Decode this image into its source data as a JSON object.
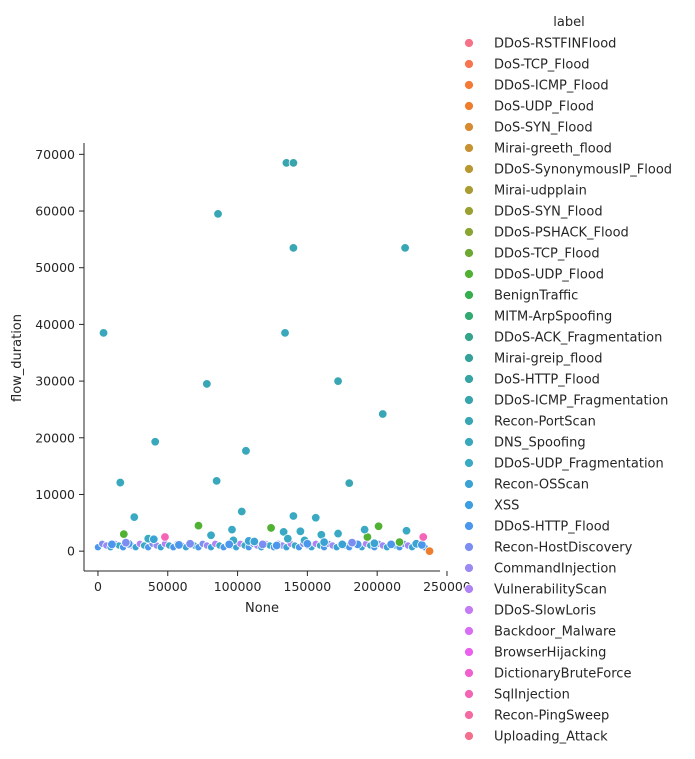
{
  "chart_data": {
    "type": "scatter",
    "xlabel": "None",
    "ylabel": "flow_duration",
    "xlim": [
      -10000,
      245000
    ],
    "ylim": [
      -3500,
      72000
    ],
    "x_ticks": [
      0,
      50000,
      100000,
      150000,
      200000,
      250000
    ],
    "x_tick_labels": [
      "0",
      "50000",
      "100000",
      "150000",
      "200000",
      "250000"
    ],
    "y_ticks": [
      0,
      10000,
      20000,
      30000,
      40000,
      50000,
      60000,
      70000
    ],
    "y_tick_labels": [
      "0",
      "10000",
      "20000",
      "30000",
      "40000",
      "50000",
      "60000",
      "70000"
    ],
    "grid": false,
    "legend_title": "label",
    "legend_position": "right",
    "series": [
      {
        "name": "DDoS-RSTFINFlood",
        "color": "#f77189",
        "points": []
      },
      {
        "name": "DoS-TCP_Flood",
        "color": "#f7754f",
        "points": []
      },
      {
        "name": "DDoS-ICMP_Flood",
        "color": "#f47a35",
        "points": []
      },
      {
        "name": "DoS-UDP_Flood",
        "color": "#ee7d2e",
        "points": [
          [
            237500,
            0
          ]
        ]
      },
      {
        "name": "DoS-SYN_Flood",
        "color": "#d68a31",
        "points": []
      },
      {
        "name": "Mirai-greeth_flood",
        "color": "#c69232",
        "points": []
      },
      {
        "name": "DDoS-SynonymousIP_Flood",
        "color": "#b89832",
        "points": []
      },
      {
        "name": "Mirai-udpplain",
        "color": "#aa9c32",
        "points": []
      },
      {
        "name": "DDoS-SYN_Flood",
        "color": "#9ba032",
        "points": []
      },
      {
        "name": "DDoS-PSHACK_Flood",
        "color": "#89a532",
        "points": []
      },
      {
        "name": "DDoS-TCP_Flood",
        "color": "#6da832",
        "points": []
      },
      {
        "name": "DDoS-UDP_Flood",
        "color": "#50b132",
        "points": [
          [
            18500,
            3000
          ],
          [
            72000,
            4500
          ],
          [
            124000,
            4100
          ],
          [
            201000,
            4400
          ],
          [
            193000,
            2500
          ],
          [
            216000,
            1600
          ]
        ]
      },
      {
        "name": "BenignTraffic",
        "color": "#35ae4b",
        "points": []
      },
      {
        "name": "MITM-ArpSpoofing",
        "color": "#33a972",
        "points": []
      },
      {
        "name": "DDoS-ACK_Fragmentation",
        "color": "#34a58a",
        "points": []
      },
      {
        "name": "Mirai-greip_flood",
        "color": "#35a29a",
        "points": []
      },
      {
        "name": "DoS-HTTP_Flood",
        "color": "#36a3a5",
        "points": []
      },
      {
        "name": "DDoS-ICMP_Fragmentation",
        "color": "#37a4ae",
        "points": [
          [
            135000,
            68500
          ],
          [
            140000,
            68500
          ]
        ]
      },
      {
        "name": "Recon-PortScan",
        "color": "#38a6b5",
        "points": [
          [
            86000,
            59500
          ],
          [
            140000,
            53500
          ],
          [
            220000,
            53500
          ],
          [
            78000,
            29500
          ],
          [
            172000,
            30000
          ],
          [
            204000,
            24200
          ],
          [
            180000,
            12000
          ]
        ]
      },
      {
        "name": "DNS_Spoofing",
        "color": "#39a8bd",
        "points": [
          [
            4000,
            38500
          ],
          [
            134000,
            38500
          ],
          [
            41000,
            19300
          ],
          [
            106000,
            17700
          ],
          [
            16000,
            12100
          ],
          [
            85000,
            12400
          ],
          [
            103000,
            7000
          ]
        ]
      },
      {
        "name": "DDoS-UDP_Fragmentation",
        "color": "#3aaac4",
        "points": [
          [
            26000,
            6000
          ],
          [
            140000,
            6200
          ],
          [
            156000,
            5900
          ],
          [
            96000,
            3800
          ],
          [
            133000,
            3400
          ],
          [
            145000,
            3500
          ],
          [
            172000,
            3100
          ],
          [
            191000,
            3800
          ],
          [
            221000,
            3600
          ],
          [
            36000,
            2200
          ],
          [
            81000,
            2800
          ],
          [
            136000,
            2200
          ],
          [
            97000,
            1900
          ],
          [
            148000,
            1900
          ],
          [
            160000,
            2900
          ]
        ]
      },
      {
        "name": "Recon-OSScan",
        "color": "#3ba3d4",
        "points": [
          [
            40000,
            2100
          ],
          [
            108000,
            1800
          ],
          [
            112000,
            1700
          ],
          [
            162000,
            1600
          ],
          [
            175000,
            1200
          ],
          [
            198000,
            1400
          ],
          [
            228000,
            1300
          ]
        ]
      },
      {
        "name": "XSS",
        "color": "#3d9fdf",
        "points": []
      },
      {
        "name": "DDoS-HTTP_Flood",
        "color": "#4a97ec",
        "points": [
          [
            10000,
            1200
          ],
          [
            22000,
            1300
          ],
          [
            58000,
            1100
          ],
          [
            94000,
            1200
          ],
          [
            128000,
            1000
          ],
          [
            150000,
            1300
          ],
          [
            186000,
            1200
          ],
          [
            210000,
            1200
          ],
          [
            232000,
            1100
          ]
        ]
      },
      {
        "name": "Recon-HostDiscovery",
        "color": "#7d8ef3",
        "points": [
          [
            20000,
            1500
          ],
          [
            66000,
            1300
          ],
          [
            118000,
            1200
          ],
          [
            182000,
            1500
          ]
        ]
      },
      {
        "name": "CommandInjection",
        "color": "#9a8af4",
        "points": []
      },
      {
        "name": "VulnerabilityScan",
        "color": "#b083f4",
        "points": []
      },
      {
        "name": "DDoS-SlowLoris",
        "color": "#c47cf3",
        "points": []
      },
      {
        "name": "Backdoor_Malware",
        "color": "#d86ff3",
        "points": []
      },
      {
        "name": "BrowserHijacking",
        "color": "#e961ed",
        "points": []
      },
      {
        "name": "DictionaryBruteForce",
        "color": "#f160cf",
        "points": []
      },
      {
        "name": "SqlInjection",
        "color": "#f465b5",
        "points": [
          [
            48000,
            2500
          ],
          [
            233000,
            2500
          ]
        ]
      },
      {
        "name": "Recon-PingSweep",
        "color": "#f56aa0",
        "points": []
      },
      {
        "name": "Uploading_Attack",
        "color": "#f66e8e",
        "points": []
      }
    ]
  }
}
